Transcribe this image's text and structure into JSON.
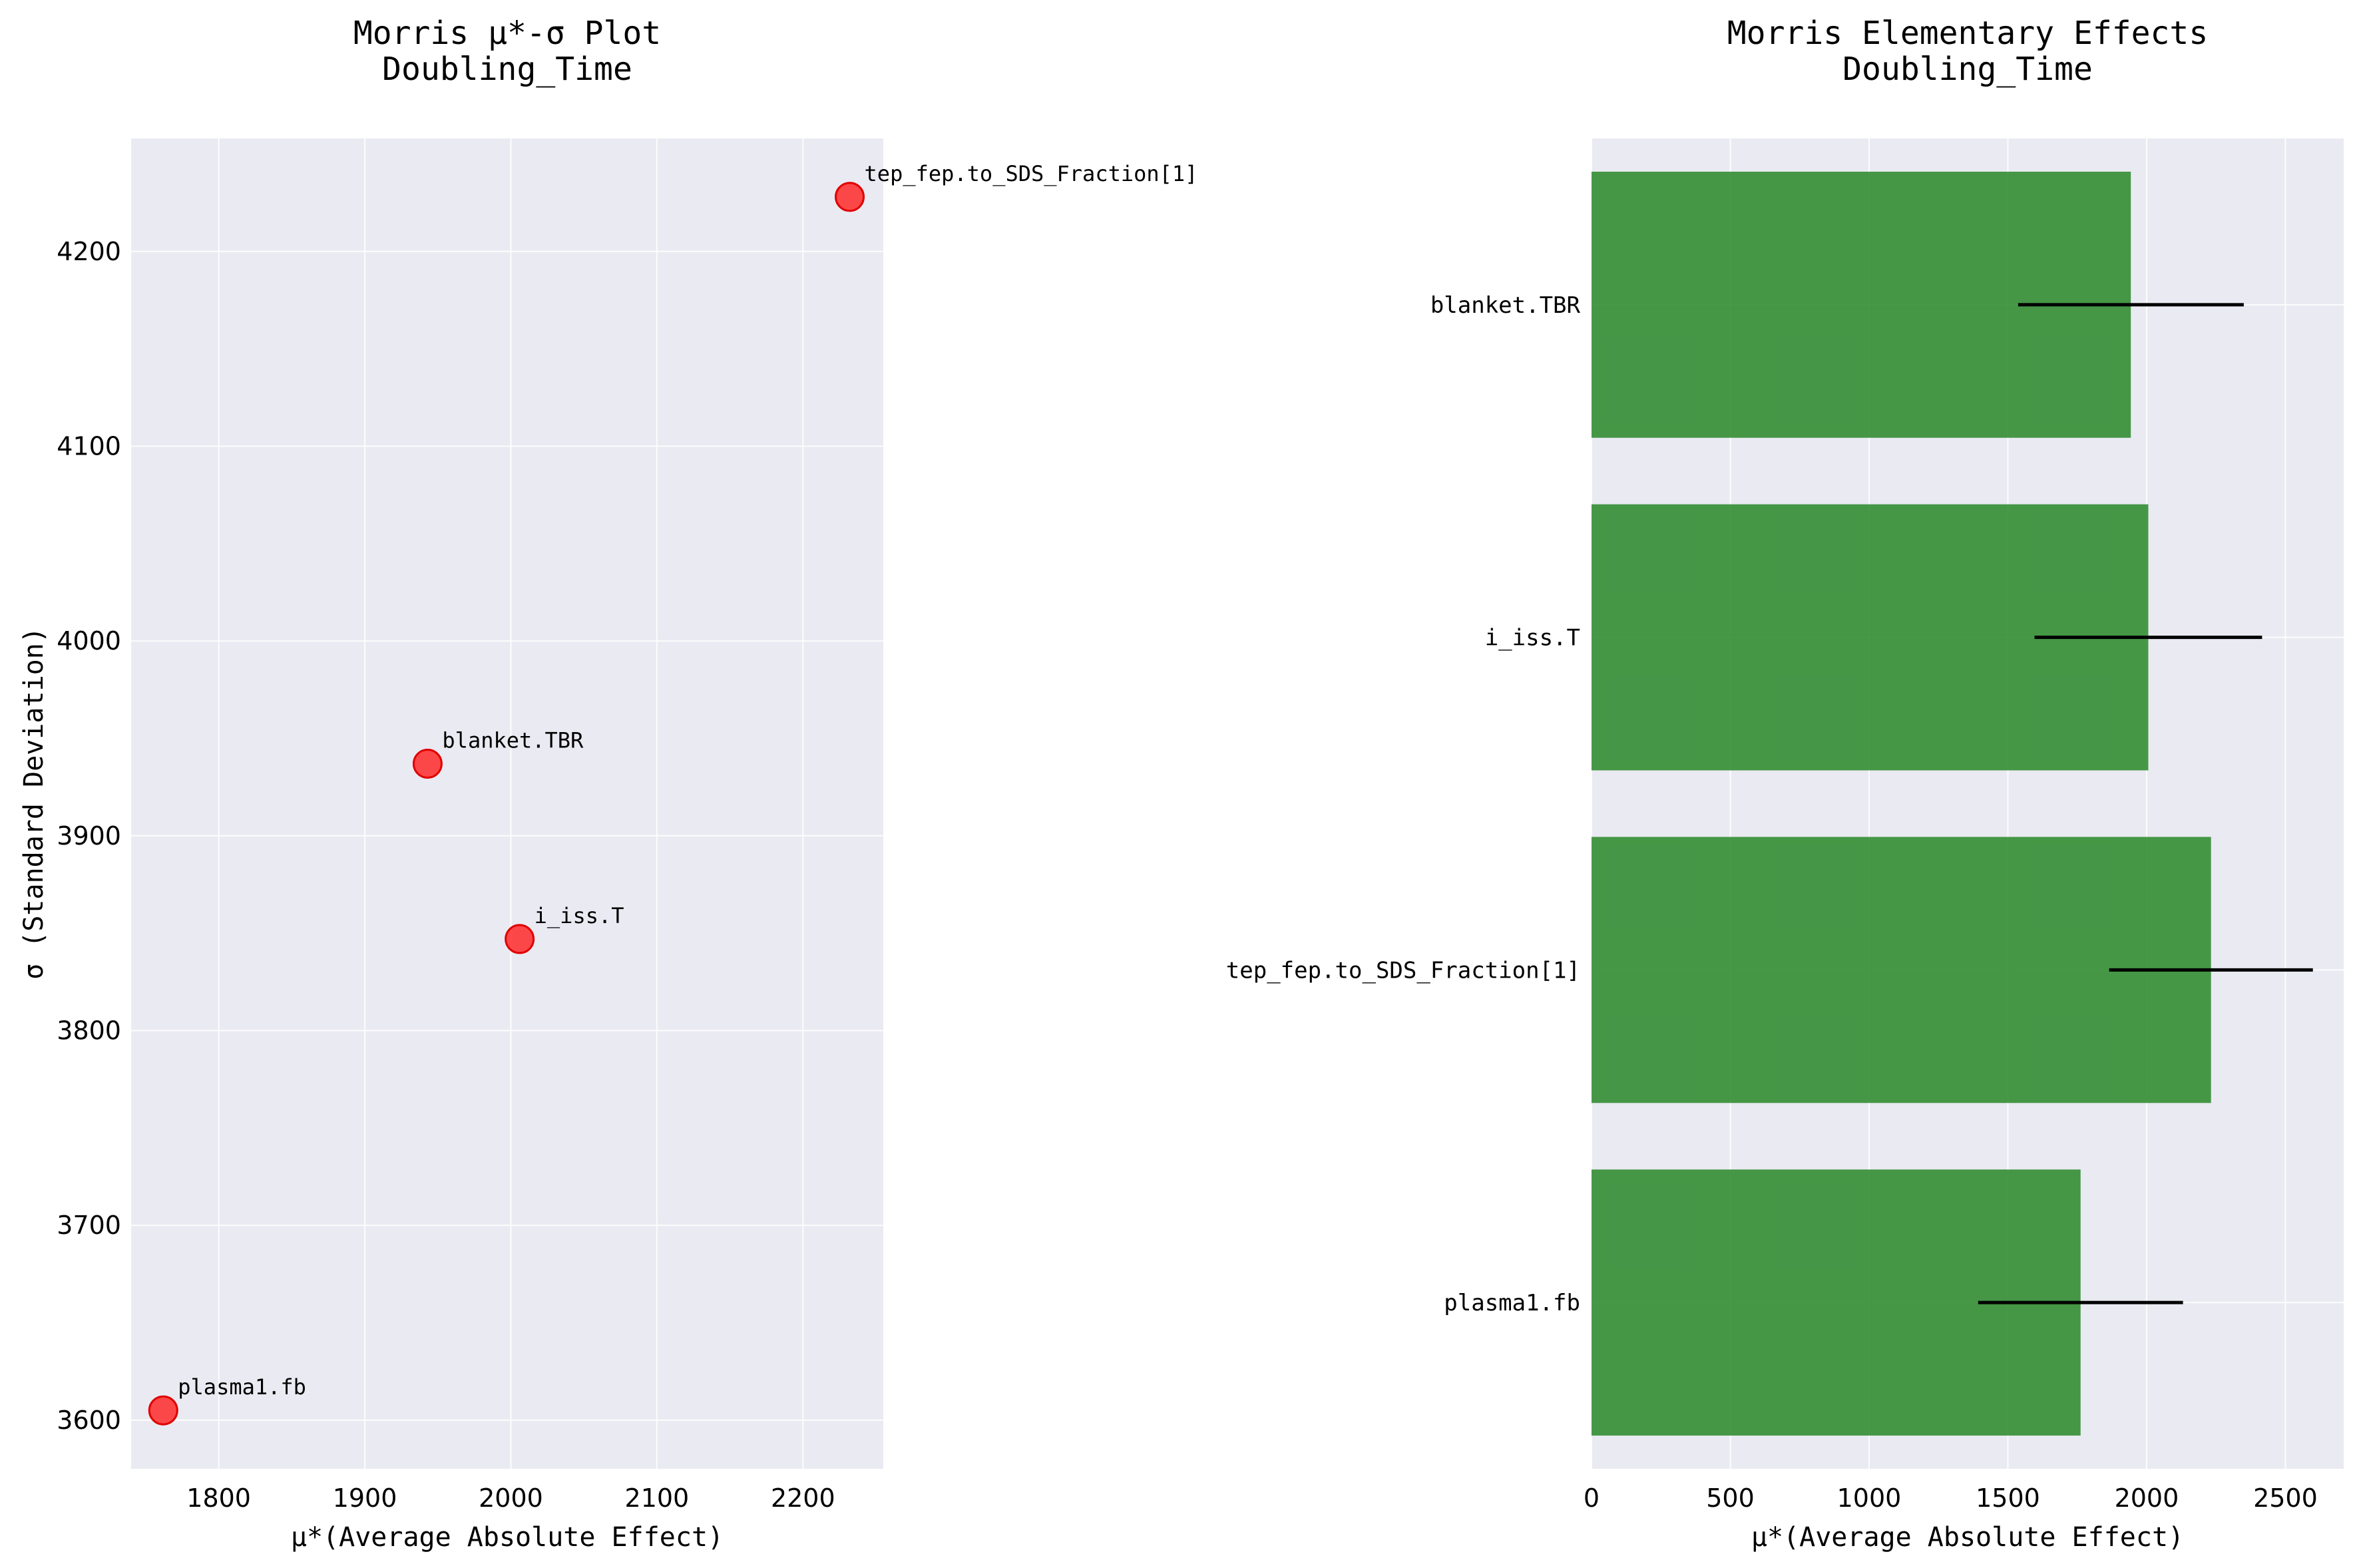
{
  "chart_data": [
    {
      "type": "scatter",
      "title": "Morris μ*-σ Plot",
      "subtitle": "Doubling_Time",
      "xlabel": "μ*(Average Absolute Effect)",
      "ylabel": "σ (Standard Deviation)",
      "xlim": [
        1740,
        2255
      ],
      "ylim": [
        3575,
        4258
      ],
      "xticks": [
        "1800",
        "1900",
        "2000",
        "2100",
        "2200"
      ],
      "yticks": [
        "3600",
        "3700",
        "3800",
        "3900",
        "4000",
        "4100",
        "4200"
      ],
      "grid": true,
      "point_color": "#ff2a2a",
      "points": [
        {
          "label": "tep_fep.to_SDS_Fraction[1]",
          "x": 2232,
          "y": 4228
        },
        {
          "label": "blanket.TBR",
          "x": 1943,
          "y": 3937
        },
        {
          "label": "i_iss.T",
          "x": 2006,
          "y": 3847
        },
        {
          "label": "plasma1.fb",
          "x": 1762,
          "y": 3605
        }
      ]
    },
    {
      "type": "bar",
      "orientation": "horizontal",
      "title": "Morris Elementary Effects",
      "subtitle": "Doubling_Time",
      "xlabel": "μ*(Average Absolute Effect)",
      "xlim": [
        0,
        2710
      ],
      "xticks": [
        "0",
        "500",
        "1000",
        "1500",
        "2000",
        "2500"
      ],
      "grid": true,
      "bar_color": "#2e8b2e",
      "categories": [
        "blanket.TBR",
        "i_iss.T",
        "tep_fep.to_SDS_Fraction[1]",
        "plasma1.fb"
      ],
      "values": [
        1943,
        2006,
        2232,
        1762
      ],
      "error_low": [
        1537,
        1596,
        1865,
        1393
      ],
      "error_high": [
        2350,
        2416,
        2599,
        2131
      ]
    }
  ]
}
